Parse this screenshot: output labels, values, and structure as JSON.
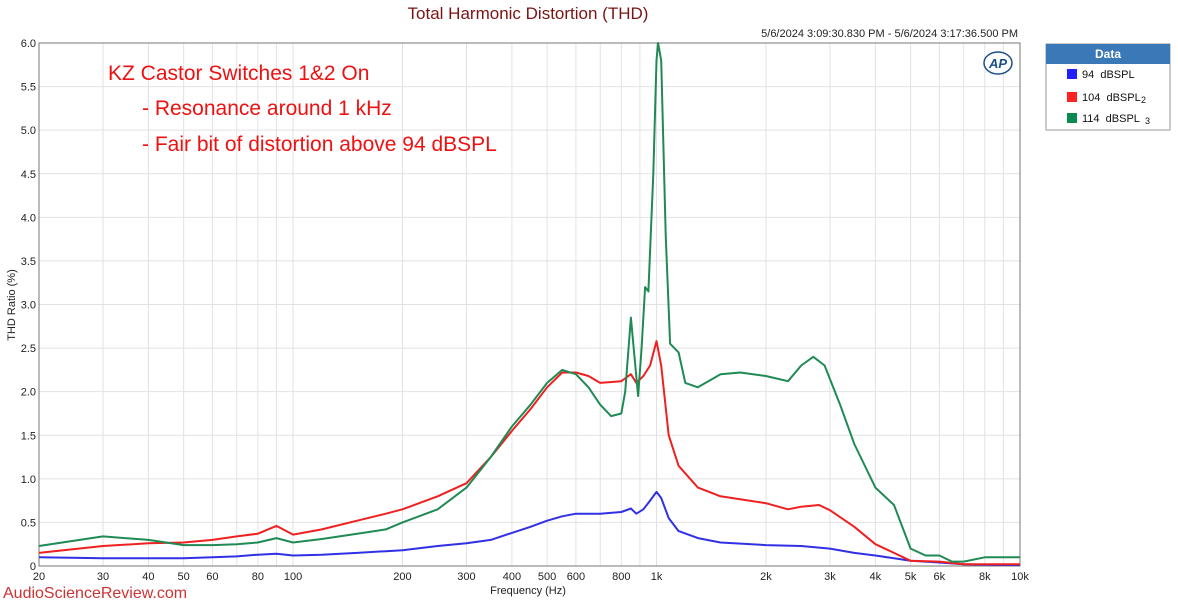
{
  "chart_data": {
    "type": "line",
    "title": "Total Harmonic Distortion (THD)",
    "date_range": "5/6/2024 3:09:30.830 PM - 5/6/2024 3:17:36.500 PM",
    "xlabel": "Frequency (Hz)",
    "ylabel": "THD Ratio (%)",
    "x_scale": "log",
    "xlim": [
      20,
      10000
    ],
    "ylim": [
      0,
      6.0
    ],
    "x_ticks": [
      {
        "value": 20,
        "label": "20"
      },
      {
        "value": 30,
        "label": "30"
      },
      {
        "value": 40,
        "label": "40"
      },
      {
        "value": 50,
        "label": "50"
      },
      {
        "value": 60,
        "label": "60"
      },
      {
        "value": 80,
        "label": "80"
      },
      {
        "value": 100,
        "label": "100"
      },
      {
        "value": 200,
        "label": "200"
      },
      {
        "value": 300,
        "label": "300"
      },
      {
        "value": 400,
        "label": "400"
      },
      {
        "value": 500,
        "label": "500"
      },
      {
        "value": 600,
        "label": "600"
      },
      {
        "value": 800,
        "label": "800"
      },
      {
        "value": 1000,
        "label": "1k"
      },
      {
        "value": 2000,
        "label": "2k"
      },
      {
        "value": 3000,
        "label": "3k"
      },
      {
        "value": 4000,
        "label": "4k"
      },
      {
        "value": 5000,
        "label": "5k"
      },
      {
        "value": 6000,
        "label": "6k"
      },
      {
        "value": 8000,
        "label": "8k"
      },
      {
        "value": 10000,
        "label": "10k"
      }
    ],
    "y_ticks": [
      "0",
      "0.5",
      "1.0",
      "1.5",
      "2.0",
      "2.5",
      "3.0",
      "3.5",
      "4.0",
      "4.5",
      "5.0",
      "5.5",
      "6.0"
    ],
    "grid": true,
    "legend": {
      "title": "Data",
      "placement": "right",
      "entries": [
        {
          "label": "94  dBSPL",
          "sub": "",
          "color": "#1f1fff"
        },
        {
          "label": "104  dBSPL",
          "sub": "2",
          "color": "#ff2020"
        },
        {
          "label": "114  dBSPL",
          "sub": "3",
          "color": "#0d8a4f"
        }
      ]
    },
    "annotation": [
      "KZ Castor Switches 1&2 On",
      "- Resonance around 1 kHz",
      "- Fair bit of distortion above 94 dBSPL"
    ],
    "series": [
      {
        "name": "94  dBSPL",
        "color": "#3030e6",
        "points": [
          [
            20,
            0.1
          ],
          [
            30,
            0.09
          ],
          [
            40,
            0.09
          ],
          [
            50,
            0.09
          ],
          [
            60,
            0.1
          ],
          [
            70,
            0.11
          ],
          [
            80,
            0.13
          ],
          [
            90,
            0.14
          ],
          [
            100,
            0.12
          ],
          [
            120,
            0.13
          ],
          [
            150,
            0.15
          ],
          [
            180,
            0.17
          ],
          [
            200,
            0.18
          ],
          [
            250,
            0.23
          ],
          [
            300,
            0.26
          ],
          [
            350,
            0.3
          ],
          [
            400,
            0.38
          ],
          [
            450,
            0.45
          ],
          [
            500,
            0.52
          ],
          [
            550,
            0.57
          ],
          [
            600,
            0.6
          ],
          [
            700,
            0.6
          ],
          [
            800,
            0.62
          ],
          [
            850,
            0.66
          ],
          [
            880,
            0.6
          ],
          [
            920,
            0.65
          ],
          [
            960,
            0.75
          ],
          [
            1000,
            0.85
          ],
          [
            1030,
            0.78
          ],
          [
            1080,
            0.55
          ],
          [
            1150,
            0.4
          ],
          [
            1300,
            0.32
          ],
          [
            1500,
            0.27
          ],
          [
            2000,
            0.24
          ],
          [
            2500,
            0.23
          ],
          [
            3000,
            0.2
          ],
          [
            3500,
            0.15
          ],
          [
            4000,
            0.12
          ],
          [
            5000,
            0.06
          ],
          [
            6000,
            0.04
          ],
          [
            7000,
            0.02
          ],
          [
            8000,
            0.015
          ],
          [
            10000,
            0.01
          ]
        ]
      },
      {
        "name": "104  dBSPL",
        "color": "#ee2020",
        "points": [
          [
            20,
            0.15
          ],
          [
            30,
            0.23
          ],
          [
            40,
            0.26
          ],
          [
            50,
            0.27
          ],
          [
            60,
            0.3
          ],
          [
            70,
            0.34
          ],
          [
            80,
            0.37
          ],
          [
            90,
            0.46
          ],
          [
            100,
            0.36
          ],
          [
            120,
            0.42
          ],
          [
            150,
            0.52
          ],
          [
            180,
            0.6
          ],
          [
            200,
            0.65
          ],
          [
            250,
            0.8
          ],
          [
            300,
            0.95
          ],
          [
            350,
            1.25
          ],
          [
            400,
            1.55
          ],
          [
            450,
            1.8
          ],
          [
            500,
            2.05
          ],
          [
            550,
            2.22
          ],
          [
            600,
            2.22
          ],
          [
            650,
            2.18
          ],
          [
            700,
            2.1
          ],
          [
            800,
            2.12
          ],
          [
            850,
            2.2
          ],
          [
            880,
            2.1
          ],
          [
            920,
            2.18
          ],
          [
            960,
            2.3
          ],
          [
            1000,
            2.58
          ],
          [
            1030,
            2.3
          ],
          [
            1080,
            1.5
          ],
          [
            1150,
            1.15
          ],
          [
            1300,
            0.9
          ],
          [
            1500,
            0.8
          ],
          [
            2000,
            0.72
          ],
          [
            2300,
            0.65
          ],
          [
            2500,
            0.68
          ],
          [
            2800,
            0.7
          ],
          [
            3000,
            0.64
          ],
          [
            3500,
            0.45
          ],
          [
            4000,
            0.25
          ],
          [
            4500,
            0.15
          ],
          [
            5000,
            0.06
          ],
          [
            6000,
            0.05
          ],
          [
            7000,
            0.02
          ],
          [
            8000,
            0.02
          ],
          [
            10000,
            0.02
          ]
        ]
      },
      {
        "name": "114  dBSPL",
        "color": "#208a55",
        "points": [
          [
            20,
            0.23
          ],
          [
            30,
            0.34
          ],
          [
            40,
            0.3
          ],
          [
            50,
            0.24
          ],
          [
            60,
            0.24
          ],
          [
            70,
            0.25
          ],
          [
            80,
            0.27
          ],
          [
            90,
            0.32
          ],
          [
            100,
            0.27
          ],
          [
            120,
            0.31
          ],
          [
            150,
            0.37
          ],
          [
            180,
            0.42
          ],
          [
            200,
            0.5
          ],
          [
            250,
            0.65
          ],
          [
            300,
            0.9
          ],
          [
            350,
            1.25
          ],
          [
            400,
            1.6
          ],
          [
            450,
            1.85
          ],
          [
            500,
            2.1
          ],
          [
            550,
            2.25
          ],
          [
            600,
            2.2
          ],
          [
            650,
            2.05
          ],
          [
            700,
            1.85
          ],
          [
            750,
            1.72
          ],
          [
            800,
            1.75
          ],
          [
            820,
            2.0
          ],
          [
            850,
            2.85
          ],
          [
            870,
            2.4
          ],
          [
            890,
            1.95
          ],
          [
            910,
            2.5
          ],
          [
            930,
            3.2
          ],
          [
            950,
            3.15
          ],
          [
            980,
            4.5
          ],
          [
            1000,
            5.8
          ],
          [
            1010,
            6.0
          ],
          [
            1030,
            5.8
          ],
          [
            1060,
            3.8
          ],
          [
            1090,
            2.55
          ],
          [
            1150,
            2.45
          ],
          [
            1200,
            2.1
          ],
          [
            1300,
            2.05
          ],
          [
            1500,
            2.2
          ],
          [
            1700,
            2.22
          ],
          [
            2000,
            2.18
          ],
          [
            2300,
            2.12
          ],
          [
            2500,
            2.3
          ],
          [
            2700,
            2.4
          ],
          [
            2900,
            2.3
          ],
          [
            3200,
            1.85
          ],
          [
            3500,
            1.4
          ],
          [
            4000,
            0.9
          ],
          [
            4500,
            0.7
          ],
          [
            5000,
            0.2
          ],
          [
            5500,
            0.12
          ],
          [
            6000,
            0.12
          ],
          [
            6500,
            0.05
          ],
          [
            7000,
            0.05
          ],
          [
            8000,
            0.1
          ],
          [
            9000,
            0.1
          ],
          [
            10000,
            0.1
          ]
        ]
      }
    ]
  },
  "watermark": "AudioScienceReview.com",
  "logo_text": "AP"
}
